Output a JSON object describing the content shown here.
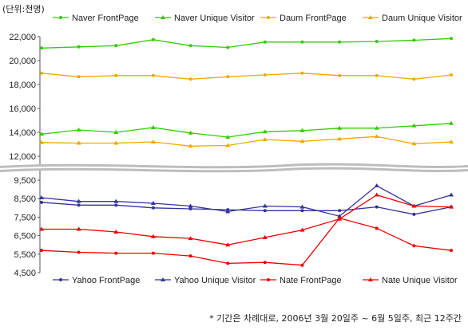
{
  "unit_label": "(단위:천명)",
  "footnote": "* 기간은 차례대로, 2006년 3월 20일주 ~ 6월 5일주, 최근 12주간",
  "chart_data": [
    {
      "type": "line",
      "yticks": [
        "22,000",
        "20,000",
        "18,000",
        "16,000",
        "14,000",
        "12,000"
      ],
      "ylim": [
        12000,
        22000
      ],
      "legend": "top",
      "series": [
        {
          "name": "Naver FrontPage",
          "color": "#33cc00",
          "marker": "circle",
          "values": [
            21050,
            21150,
            21250,
            21750,
            21250,
            21100,
            21550,
            21550,
            21550,
            21600,
            21700,
            21850
          ]
        },
        {
          "name": "Naver Unique Visitor",
          "color": "#33cc00",
          "marker": "triangle",
          "values": [
            13850,
            14200,
            14000,
            14400,
            13950,
            13600,
            14050,
            14150,
            14350,
            14350,
            14550,
            14750
          ]
        },
        {
          "name": "Daum FrontPage",
          "color": "#f0a800",
          "marker": "circle",
          "values": [
            18950,
            18650,
            18750,
            18750,
            18450,
            18650,
            18800,
            18950,
            18750,
            18750,
            18450,
            18800
          ]
        },
        {
          "name": "Daum Unique Visitor",
          "color": "#f0a800",
          "marker": "triangle",
          "values": [
            13150,
            13100,
            13100,
            13200,
            12850,
            12900,
            13400,
            13250,
            13450,
            13650,
            13050,
            13200
          ]
        }
      ]
    },
    {
      "type": "line",
      "yticks": [
        "9,500",
        "8,500",
        "7,500",
        "6,500",
        "5,500",
        "4,500"
      ],
      "ylim": [
        4500,
        9500
      ],
      "legend": "bottom",
      "series": [
        {
          "name": "Yahoo FrontPage",
          "color": "#333399",
          "marker": "circle",
          "values": [
            8300,
            8150,
            8150,
            8000,
            7950,
            7900,
            7850,
            7850,
            7850,
            8050,
            7650,
            8050
          ]
        },
        {
          "name": "Yahoo Unique Visitor",
          "color": "#333399",
          "marker": "triangle",
          "values": [
            8550,
            8350,
            8350,
            8250,
            8100,
            7800,
            8100,
            8050,
            7550,
            9200,
            8100,
            8700
          ]
        },
        {
          "name": "Nate FrontPage",
          "color": "#ee0000",
          "marker": "circle",
          "values": [
            5700,
            5600,
            5550,
            5550,
            5400,
            5000,
            5050,
            4900,
            7450,
            6900,
            5950,
            5700
          ]
        },
        {
          "name": "Nate Unique Visitor",
          "color": "#ee0000",
          "marker": "triangle",
          "values": [
            6850,
            6850,
            6700,
            6450,
            6350,
            6000,
            6400,
            6800,
            7400,
            8700,
            8100,
            8050
          ]
        }
      ]
    }
  ]
}
